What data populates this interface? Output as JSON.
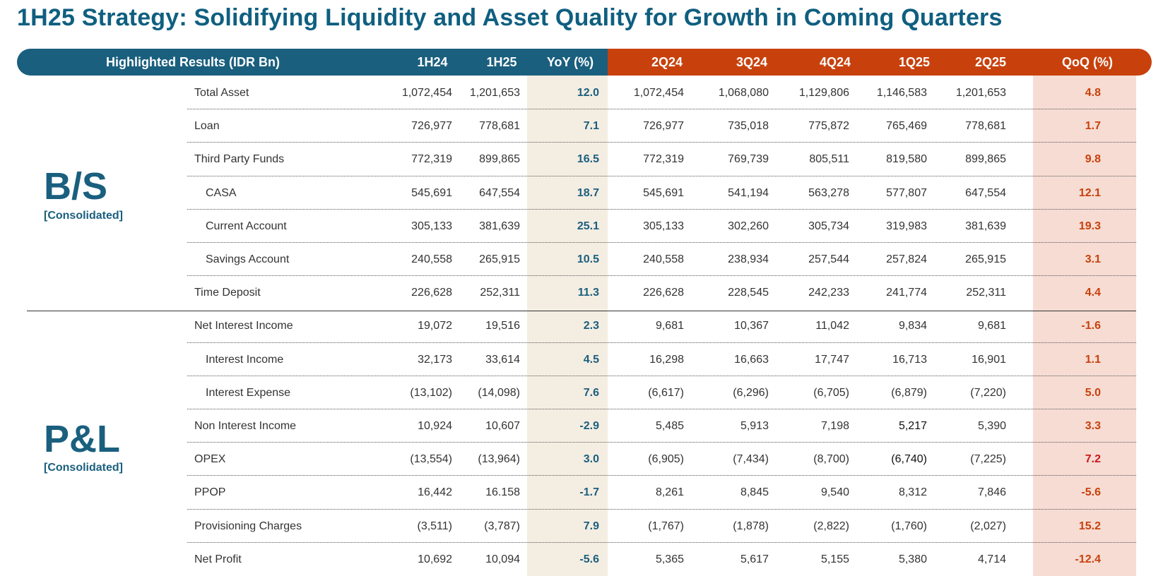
{
  "title": "1H25 Strategy: Solidifying Liquidity and Asset Quality for Growth in Coming Quarters",
  "header": {
    "label": "Highlighted Results (IDR Bn)",
    "columns": [
      "1H24",
      "1H25",
      "YoY (%)",
      "2Q24",
      "3Q24",
      "4Q24",
      "1Q25",
      "2Q25",
      "QoQ (%)"
    ]
  },
  "sections": [
    {
      "title": "B/S",
      "subtitle": "[Consolidated]"
    },
    {
      "title": "P&L",
      "subtitle": "[Consolidated]"
    }
  ],
  "rows": [
    {
      "label": "Total Asset",
      "values": [
        "1,072,454",
        "1,201,653",
        "12.0",
        "1,072,454",
        "1,068,080",
        "1,129,806",
        "1,146,583",
        "1,201,653",
        "4.8"
      ]
    },
    {
      "label": "Loan",
      "values": [
        "726,977",
        "778,681",
        "7.1",
        "726,977",
        "735,018",
        "775,872",
        "765,469",
        "778,681",
        "1.7"
      ]
    },
    {
      "label": "Third Party Funds",
      "values": [
        "772,319",
        "899,865",
        "16.5",
        "772,319",
        "769,739",
        "805,511",
        "819,580",
        "899,865",
        "9.8"
      ]
    },
    {
      "label": "CASA",
      "values": [
        "545,691",
        "647,554",
        "18.7",
        "545,691",
        "541,194",
        "563,278",
        "577,807",
        "647,554",
        "12.1"
      ]
    },
    {
      "label": "Current Account",
      "values": [
        "305,133",
        "381,639",
        "25.1",
        "305,133",
        "302,260",
        "305,734",
        "319,983",
        "381,639",
        "19.3"
      ]
    },
    {
      "label": "Savings Account",
      "values": [
        "240,558",
        "265,915",
        "10.5",
        "240,558",
        "238,934",
        "257,544",
        "257,824",
        "265,915",
        "3.1"
      ]
    },
    {
      "label": "Time Deposit",
      "values": [
        "226,628",
        "252,311",
        "11.3",
        "226,628",
        "228,545",
        "242,233",
        "241,774",
        "252,311",
        "4.4"
      ]
    },
    {
      "label": "Net Interest Income",
      "values": [
        "19,072",
        "19,516",
        "2.3",
        "9,681",
        "10,367",
        "11,042",
        "9,834",
        "9,681",
        "-1.6"
      ]
    },
    {
      "label": "Interest Income",
      "values": [
        "32,173",
        "33,614",
        "4.5",
        "16,298",
        "16,663",
        "17,747",
        "16,713",
        "16,901",
        "1.1"
      ]
    },
    {
      "label": "Interest Expense",
      "values": [
        "(13,102)",
        "(14,098)",
        "7.6",
        "(6,617)",
        "(6,296)",
        "(6,705)",
        "(6,879)",
        "(7,220)",
        "5.0"
      ]
    },
    {
      "label": "Non Interest Income",
      "values": [
        "10,924",
        "10,607",
        "-2.9",
        "5,485",
        "5,913",
        "7,198",
        "5,217",
        "5,390",
        "3.3"
      ]
    },
    {
      "label": "OPEX",
      "values": [
        "(13,554)",
        "(13,964)",
        "3.0",
        "(6,905)",
        "(7,434)",
        "(8,700)",
        "(6,740)",
        "(7,225)",
        "7.2"
      ]
    },
    {
      "label": "PPOP",
      "values": [
        "16,442",
        "16.158",
        "-1.7",
        "8,261",
        "8,845",
        "9,540",
        "8,312",
        "7,846",
        "-5.6"
      ]
    },
    {
      "label": "Provisioning Charges",
      "values": [
        "(3,511)",
        "(3,787)",
        "7.9",
        "(1,767)",
        "(1,878)",
        "(2,822)",
        "(1,760)",
        "(2,027)",
        "15.2"
      ]
    },
    {
      "label": "Net Profit",
      "values": [
        "10,692",
        "10,094",
        "-5.6",
        "5,365",
        "5,617",
        "5,155",
        "5,380",
        "4,714",
        "-12.4"
      ]
    }
  ],
  "colors": {
    "header_blue": "#1a5f7e",
    "header_orange": "#c8410c",
    "yoy_shade": "#f4ede2",
    "qoq_shade": "#f6dcd3",
    "highlight_red": "#d0151b"
  }
}
